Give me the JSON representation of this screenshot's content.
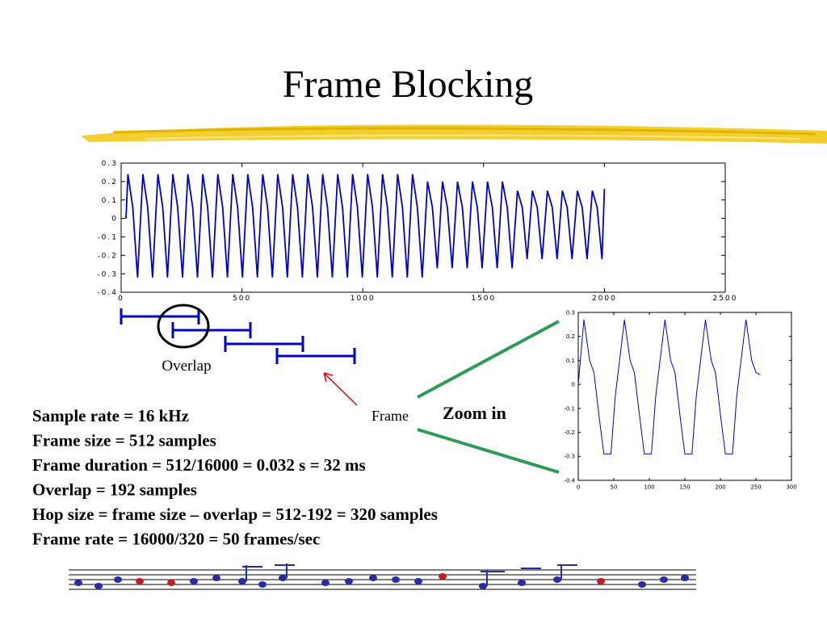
{
  "title": "Frame Blocking",
  "labels": {
    "overlap": "Overlap",
    "frame": "Frame",
    "zoom": "Zoom in"
  },
  "notes": [
    "Sample rate = 16 kHz",
    "Frame size = 512 samples",
    "Frame duration = 512/16000 = 0.032 s = 32 ms",
    "Overlap = 192 samples",
    "Hop size = frame size – overlap = 512-192 = 320 samples",
    "Frame rate = 16000/320 = 50 frames/sec"
  ],
  "chart_data": [
    {
      "type": "line",
      "color": "#0000cc",
      "x": [
        20,
        28,
        48,
        68,
        90,
        110,
        130,
        152,
        172,
        192,
        214,
        234,
        254,
        276,
        296,
        316,
        338,
        358,
        378,
        400,
        420,
        440,
        462,
        482,
        502,
        524,
        544,
        564,
        586,
        606,
        626,
        648,
        668,
        688,
        710,
        730,
        750,
        772,
        792,
        812,
        834,
        854,
        874,
        896,
        916,
        936,
        958,
        978,
        998,
        1020,
        1040,
        1060,
        1082,
        1102,
        1122,
        1144,
        1164,
        1184,
        1206,
        1226,
        1246,
        1268,
        1288,
        1308,
        1330,
        1350,
        1370,
        1392,
        1412,
        1432,
        1454,
        1474,
        1494,
        1516,
        1536,
        1556,
        1578,
        1598,
        1618,
        1640,
        1660,
        1680,
        1702,
        1722,
        1742,
        1764,
        1784,
        1804,
        1826,
        1846,
        1866,
        1888,
        1908,
        1928,
        1950,
        1970,
        1990,
        2000
      ],
      "values": [
        0,
        0.24,
        0.06,
        -0.32,
        0.24,
        0.06,
        -0.32,
        0.24,
        0.06,
        -0.32,
        0.24,
        0.06,
        -0.32,
        0.24,
        0.06,
        -0.32,
        0.24,
        0.06,
        -0.32,
        0.24,
        0.06,
        -0.32,
        0.24,
        0.06,
        -0.32,
        0.24,
        0.06,
        -0.32,
        0.24,
        0.06,
        -0.32,
        0.24,
        0.06,
        -0.32,
        0.24,
        0.06,
        -0.32,
        0.24,
        0.06,
        -0.32,
        0.24,
        0.06,
        -0.32,
        0.24,
        0.06,
        -0.32,
        0.24,
        0.06,
        -0.32,
        0.24,
        0.06,
        -0.32,
        0.24,
        0.06,
        -0.32,
        0.24,
        0.06,
        -0.32,
        0.24,
        0.06,
        -0.32,
        0.2,
        0.06,
        -0.27,
        0.2,
        0.06,
        -0.27,
        0.2,
        0.06,
        -0.27,
        0.2,
        0.06,
        -0.27,
        0.2,
        0.06,
        -0.27,
        0.2,
        0.06,
        -0.27,
        0.15,
        0.06,
        -0.22,
        0.15,
        0.06,
        -0.22,
        0.15,
        0.06,
        -0.22,
        0.15,
        0.06,
        -0.22,
        0.15,
        0.06,
        -0.22,
        0.15,
        0.06,
        -0.22,
        0.16
      ],
      "xlim": [
        0,
        2500
      ],
      "xticks": [
        0,
        500,
        1000,
        1500,
        2000,
        2500
      ],
      "ylim": [
        -0.4,
        0.3
      ],
      "yticks": [
        -0.4,
        -0.3,
        -0.2,
        -0.1,
        0,
        0.1,
        0.2,
        0.3
      ]
    },
    {
      "type": "line",
      "color": "#0000cc",
      "x": [
        0,
        8,
        16,
        22,
        30,
        36,
        46,
        52,
        65,
        73,
        79,
        87,
        93,
        103,
        109,
        122,
        130,
        136,
        144,
        150,
        160,
        166,
        179,
        187,
        193,
        201,
        207,
        217,
        223,
        236,
        244,
        250,
        256
      ],
      "values": [
        0,
        0.27,
        0.1,
        0.05,
        -0.15,
        -0.29,
        -0.29,
        -0.05,
        0.27,
        0.1,
        0.05,
        -0.15,
        -0.29,
        -0.29,
        -0.05,
        0.27,
        0.1,
        0.05,
        -0.15,
        -0.29,
        -0.29,
        -0.05,
        0.27,
        0.1,
        0.05,
        -0.15,
        -0.29,
        -0.29,
        -0.05,
        0.27,
        0.1,
        0.05,
        0.04
      ],
      "xlim": [
        0,
        300
      ],
      "xticks": [
        0,
        50,
        100,
        150,
        200,
        250,
        300
      ],
      "ylim": [
        -0.4,
        0.3
      ],
      "yticks": [
        -0.4,
        -0.3,
        -0.2,
        -0.1,
        0,
        0.1,
        0.2,
        0.3
      ]
    }
  ]
}
